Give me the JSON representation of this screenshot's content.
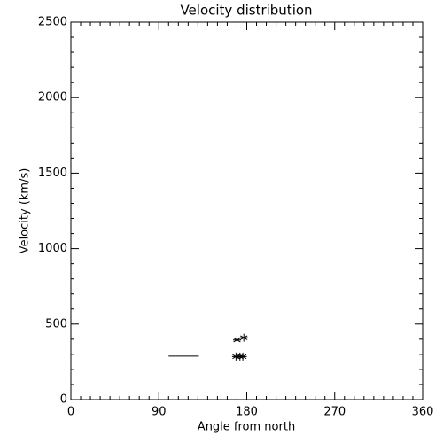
{
  "chart_data": {
    "type": "scatter",
    "title": "Velocity distribution",
    "x_label": "Angle from north",
    "y_label": "Velocity (km/s)",
    "xlim": [
      0,
      360
    ],
    "xticks": [
      0,
      90,
      180,
      270,
      360
    ],
    "ylim": [
      0,
      2500
    ],
    "yticks": [
      0,
      500,
      1000,
      1500,
      2000,
      2500
    ],
    "x_minor_divisions": 9,
    "y_minor_divisions": 5,
    "color": "#000000",
    "series": [
      {
        "type": "line",
        "x": [
          100,
          131
        ],
        "values": [
          288,
          288
        ]
      },
      {
        "type": "scatter",
        "marker": "asterisk",
        "x": [
          170,
          177,
          169,
          173,
          176
        ],
        "values": [
          395,
          410,
          285,
          285,
          285
        ]
      }
    ]
  }
}
